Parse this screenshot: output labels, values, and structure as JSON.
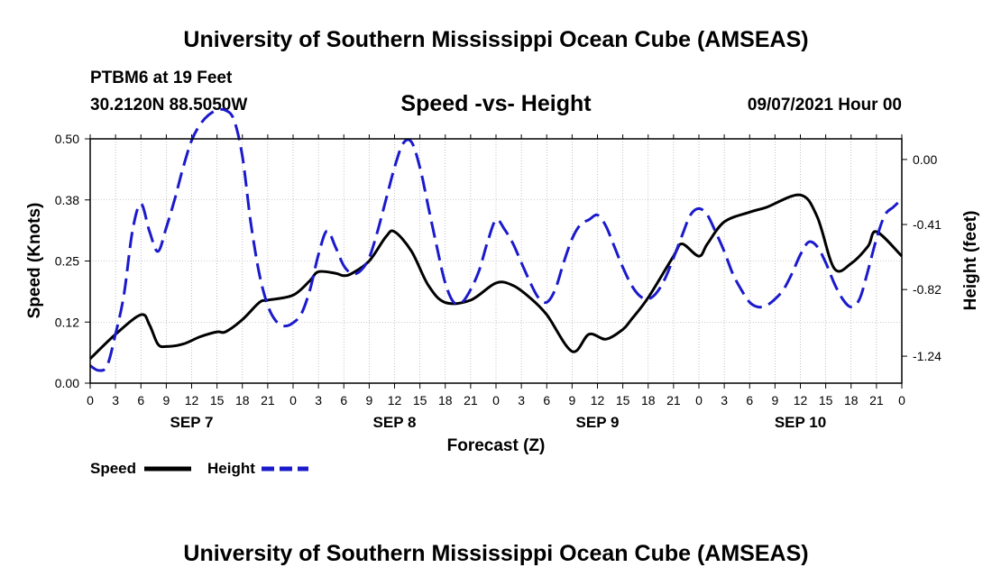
{
  "header": {
    "title_top": "University of Southern Mississippi Ocean Cube (AMSEAS)",
    "station": "PTBM6 at 19 Feet",
    "coords": "30.2120N  88.5050W",
    "chart_title": "Speed -vs- Height",
    "datetime": "09/07/2021 Hour 00",
    "title_bottom": "University of Southern Mississippi Ocean Cube (AMSEAS)"
  },
  "colors": {
    "speed": "#000000",
    "height": "#1a1acc"
  },
  "chart_data": {
    "type": "line",
    "title": "Speed -vs- Height",
    "xlabel": "Forecast (Z)",
    "ylabel": "Speed (Knots)",
    "y2label": "Height (feet)",
    "x_hours_range": [
      0,
      96
    ],
    "x_tick_labels": [
      "0",
      "3",
      "6",
      "9",
      "12",
      "15",
      "18",
      "21",
      "0",
      "3",
      "6",
      "9",
      "12",
      "15",
      "18",
      "21",
      "0",
      "3",
      "6",
      "9",
      "12",
      "15",
      "18",
      "21",
      "0",
      "3",
      "6",
      "9",
      "12",
      "15",
      "18",
      "21",
      "0"
    ],
    "day_labels": [
      {
        "label": "SEP 7",
        "hour": 12
      },
      {
        "label": "SEP 8",
        "hour": 36
      },
      {
        "label": "SEP 9",
        "hour": 60
      },
      {
        "label": "SEP 10",
        "hour": 84
      }
    ],
    "ylim": [
      0,
      0.5
    ],
    "y_ticks": [
      0,
      0.125,
      0.25,
      0.375,
      0.5
    ],
    "y_tick_labels": [
      "0.00",
      "0.12",
      "0.25",
      "0.38",
      "0.50"
    ],
    "y2lim": [
      -1.41,
      0.13
    ],
    "y2_ticks": [
      0.0,
      -0.41,
      -0.82,
      -1.24
    ],
    "y2_tick_labels": [
      "0.00",
      "-0.41",
      "-0.82",
      "-1.24"
    ],
    "legend": [
      {
        "name": "Speed",
        "style": "solid"
      },
      {
        "name": "Height",
        "style": "dashed"
      }
    ],
    "series": [
      {
        "name": "Speed",
        "axis": "left",
        "style": "solid",
        "x": [
          0,
          3,
          6,
          7,
          8,
          9,
          11,
          13,
          15,
          16,
          18,
          20,
          21,
          24,
          26,
          27,
          29,
          30,
          31,
          33,
          35,
          36,
          38,
          40,
          42,
          45,
          48,
          50,
          52,
          54,
          57,
          59,
          61,
          63,
          64,
          66,
          69,
          70,
          72,
          73,
          75,
          78,
          80,
          84,
          86,
          88,
          90,
          92,
          93,
          96
        ],
        "values": [
          0.05,
          0.1,
          0.14,
          0.12,
          0.08,
          0.075,
          0.08,
          0.095,
          0.105,
          0.105,
          0.13,
          0.165,
          0.17,
          0.18,
          0.21,
          0.228,
          0.225,
          0.22,
          0.225,
          0.25,
          0.3,
          0.31,
          0.27,
          0.2,
          0.165,
          0.17,
          0.205,
          0.2,
          0.175,
          0.14,
          0.065,
          0.1,
          0.09,
          0.11,
          0.13,
          0.175,
          0.26,
          0.285,
          0.26,
          0.285,
          0.33,
          0.35,
          0.36,
          0.385,
          0.34,
          0.235,
          0.245,
          0.28,
          0.31,
          0.26
        ]
      },
      {
        "name": "Height",
        "axis": "right",
        "style": "dashed",
        "x": [
          0,
          1,
          2,
          3,
          4,
          5,
          6,
          7,
          8,
          9,
          10,
          11,
          12,
          13,
          14,
          15,
          16,
          17,
          18,
          19,
          20,
          21,
          22,
          23,
          24,
          25,
          26,
          27,
          28,
          29,
          30,
          31,
          32,
          33,
          34,
          35,
          36,
          37,
          38,
          39,
          40,
          41,
          42,
          43,
          44,
          45,
          46,
          47,
          48,
          49,
          50,
          51,
          52,
          53,
          54,
          55,
          56,
          57,
          58,
          59,
          60,
          61,
          62,
          63,
          64,
          65,
          66,
          67,
          68,
          69,
          70,
          71,
          72,
          73,
          74,
          75,
          76,
          77,
          78,
          79,
          80,
          81,
          82,
          83,
          84,
          85,
          86,
          87,
          88,
          89,
          90,
          91,
          92,
          93,
          94,
          95,
          96
        ],
        "values": [
          -1.3,
          -1.33,
          -1.3,
          -1.1,
          -0.85,
          -0.45,
          -0.28,
          -0.45,
          -0.58,
          -0.43,
          -0.25,
          -0.05,
          0.12,
          0.22,
          0.28,
          0.31,
          0.31,
          0.25,
          0.02,
          -0.4,
          -0.72,
          -0.92,
          -1.02,
          -1.05,
          -1.03,
          -0.97,
          -0.82,
          -0.6,
          -0.45,
          -0.55,
          -0.67,
          -0.72,
          -0.7,
          -0.62,
          -0.45,
          -0.25,
          -0.05,
          0.1,
          0.11,
          -0.05,
          -0.3,
          -0.55,
          -0.78,
          -0.9,
          -0.9,
          -0.82,
          -0.7,
          -0.52,
          -0.38,
          -0.44,
          -0.53,
          -0.65,
          -0.77,
          -0.87,
          -0.9,
          -0.82,
          -0.65,
          -0.5,
          -0.41,
          -0.38,
          -0.35,
          -0.42,
          -0.55,
          -0.68,
          -0.79,
          -0.86,
          -0.88,
          -0.84,
          -0.75,
          -0.62,
          -0.48,
          -0.35,
          -0.31,
          -0.35,
          -0.46,
          -0.58,
          -0.72,
          -0.82,
          -0.9,
          -0.93,
          -0.92,
          -0.88,
          -0.82,
          -0.72,
          -0.6,
          -0.52,
          -0.55,
          -0.65,
          -0.78,
          -0.88,
          -0.93,
          -0.88,
          -0.7,
          -0.5,
          -0.35,
          -0.3,
          -0.25
        ]
      }
    ]
  }
}
